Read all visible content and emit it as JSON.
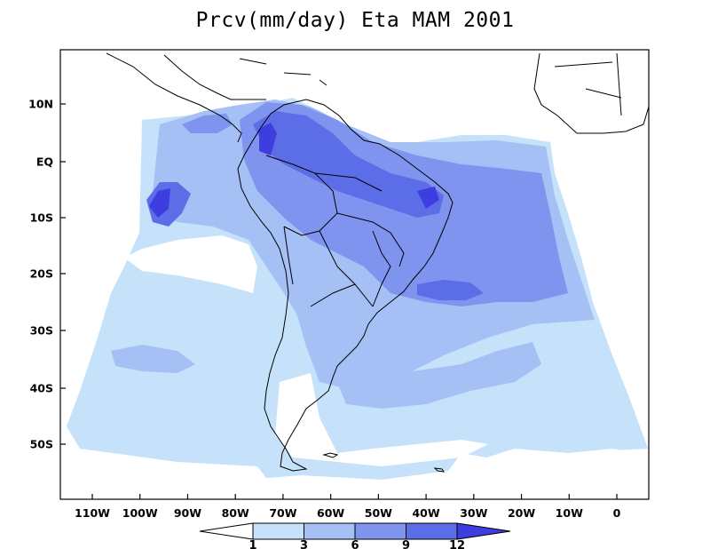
{
  "title": "Prcv(mm/day) Eta MAM 2001",
  "map": {
    "variable": "Prcv",
    "units": "mm/day",
    "model": "Eta",
    "season": "MAM",
    "year": "2001",
    "lon_range": [
      -118,
      7
    ],
    "lat_range": [
      -60,
      15
    ],
    "lat_ticks": [
      {
        "value": 10,
        "label": "10N"
      },
      {
        "value": 0,
        "label": "EQ"
      },
      {
        "value": -10,
        "label": "10S"
      },
      {
        "value": -20,
        "label": "20S"
      },
      {
        "value": -30,
        "label": "30S"
      },
      {
        "value": -40,
        "label": "40S"
      },
      {
        "value": -50,
        "label": "50S"
      }
    ],
    "lon_ticks": [
      {
        "value": -110,
        "label": "110W"
      },
      {
        "value": -100,
        "label": "100W"
      },
      {
        "value": -90,
        "label": "90W"
      },
      {
        "value": -80,
        "label": "80W"
      },
      {
        "value": -70,
        "label": "70W"
      },
      {
        "value": -60,
        "label": "60W"
      },
      {
        "value": -50,
        "label": "50W"
      },
      {
        "value": -40,
        "label": "40W"
      },
      {
        "value": -30,
        "label": "30W"
      },
      {
        "value": -20,
        "label": "20W"
      },
      {
        "value": -10,
        "label": "10W"
      },
      {
        "value": 0,
        "label": "0"
      }
    ],
    "colorbar": {
      "levels": [
        "1",
        "3",
        "6",
        "9",
        "12"
      ],
      "colors": [
        "#ffffff",
        "#c5e2fa",
        "#a5c0f5",
        "#7f94ee",
        "#5c6de8",
        "#3d3de0"
      ]
    },
    "colors": {
      "light": "#c5e2fa",
      "medium": "#a5c0f5",
      "strong": "#7f94ee",
      "heavy": "#5c6de8",
      "extreme": "#3d3de0"
    }
  }
}
